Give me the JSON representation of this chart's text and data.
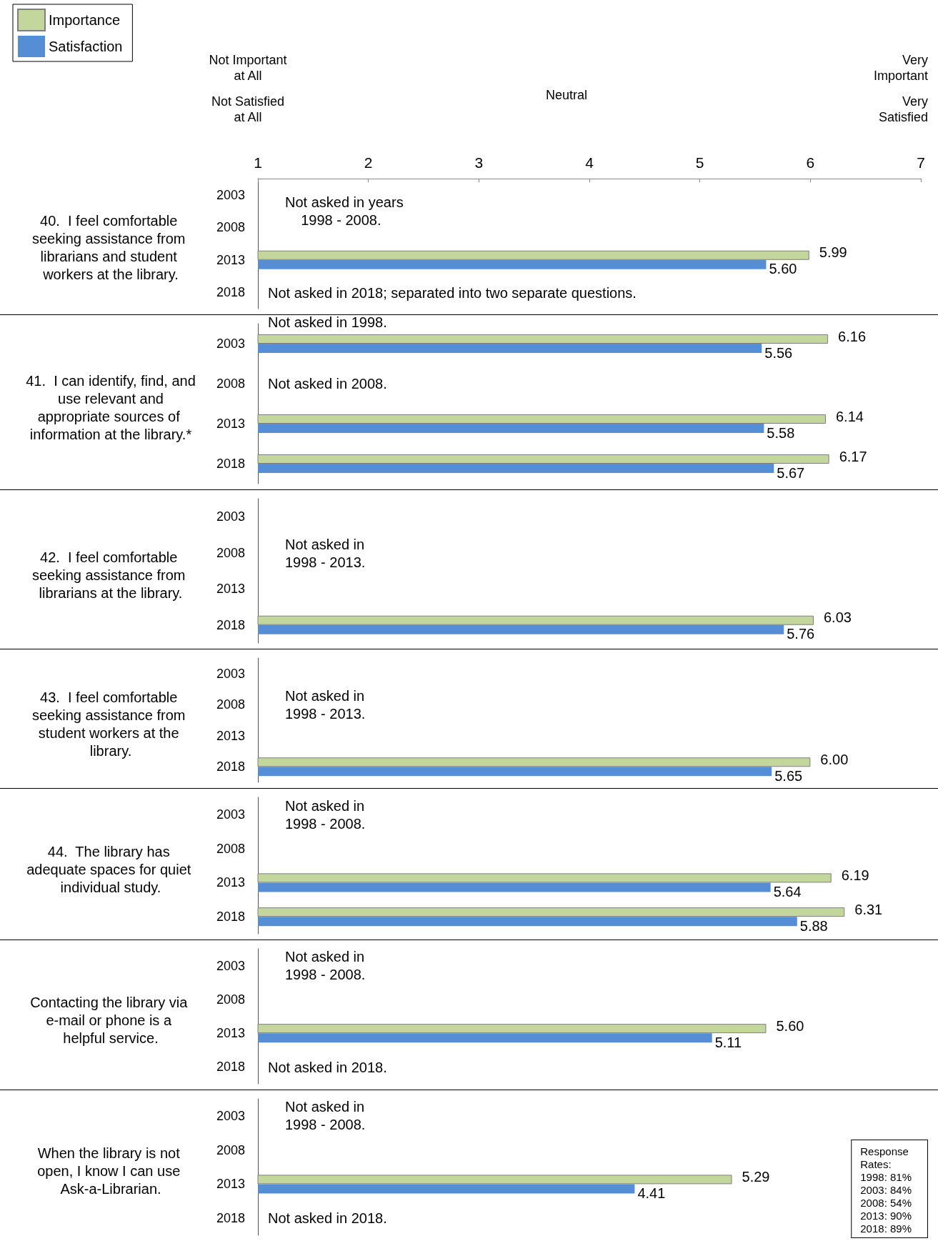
{
  "chart_data": [
    {
      "type": "bar",
      "orientation": "horizontal",
      "title": "40.  I feel comfortable seeking assistance from librarians and student workers at the library.",
      "categories": [
        "2003",
        "2008",
        "2013",
        "2018"
      ],
      "xlim": [
        1,
        7
      ],
      "xticks": [
        1,
        2,
        3,
        4,
        5,
        6,
        7
      ],
      "legend": "top left",
      "grid": false,
      "series": [
        {
          "name": "Importance",
          "color": "#c3d69b",
          "values": [
            null,
            null,
            5.99,
            null
          ],
          "value_labels": [
            null,
            null,
            "5.99",
            null
          ]
        },
        {
          "name": "Satisfaction",
          "color": "#558ed5",
          "values": [
            null,
            null,
            5.6,
            null
          ],
          "value_labels": [
            null,
            null,
            "5.60",
            null
          ]
        }
      ],
      "annotations": [
        "Not Important\nat All",
        "Not Satisfied\nat All",
        "Neutral",
        "Very\nImportant",
        "Very\nSatisfied",
        "Not asked in years\n    1998 - 2008.",
        "Not asked in 2018; separated into two separate questions."
      ]
    },
    {
      "type": "bar",
      "orientation": "horizontal",
      "title": "41.  I can identify, find, and use relevant and appropriate sources of information at the library.*",
      "categories": [
        "2003",
        "2008",
        "2013",
        "2018"
      ],
      "xlim": [
        1,
        7
      ],
      "tick_labels": "y",
      "series": [
        {
          "color": "#c3d69b",
          "values": [
            6.16,
            null,
            6.14,
            6.17
          ],
          "value_labels": [
            "6.16",
            null,
            "6.14",
            "6.17"
          ]
        },
        {
          "color": "#558ed5",
          "values": [
            5.56,
            null,
            5.58,
            5.67
          ],
          "value_labels": [
            "5.56",
            null,
            "5.58",
            "5.67"
          ]
        }
      ],
      "annotations": [
        "Not asked in 1998.",
        "Not asked in 2008."
      ]
    },
    {
      "type": "bar",
      "orientation": "horizontal",
      "title": "42.  I feel comfortable seeking assistance from librarians at the library.",
      "categories": [
        "2003",
        "2008",
        "2013",
        "2018"
      ],
      "xlim": [
        1,
        7
      ],
      "tick_labels": "y",
      "series": [
        {
          "color": "#c3d69b",
          "values": [
            null,
            null,
            null,
            6.03
          ],
          "value_labels": [
            null,
            null,
            null,
            "6.03"
          ]
        },
        {
          "color": "#558ed5",
          "values": [
            null,
            null,
            null,
            5.76
          ],
          "value_labels": [
            null,
            null,
            null,
            "5.76"
          ]
        }
      ],
      "annotations": [
        "Not asked in\n1998 - 2013."
      ]
    },
    {
      "type": "bar",
      "orientation": "horizontal",
      "title": "43.  I feel comfortable seeking assistance from student workers at the library.",
      "categories": [
        "2003",
        "2008",
        "2013",
        "2018"
      ],
      "xlim": [
        1,
        7
      ],
      "tick_labels": "y",
      "series": [
        {
          "color": "#c3d69b",
          "values": [
            null,
            null,
            null,
            6.0
          ],
          "value_labels": [
            null,
            null,
            null,
            "6.00"
          ]
        },
        {
          "color": "#558ed5",
          "values": [
            null,
            null,
            null,
            5.65
          ],
          "value_labels": [
            null,
            null,
            null,
            "5.65"
          ]
        }
      ],
      "annotations": [
        "Not asked in\n1998 - 2013."
      ]
    },
    {
      "type": "bar",
      "orientation": "horizontal",
      "title": "44.  The library has adequate spaces for quiet individual study.",
      "categories": [
        "2003",
        "2008",
        "2013",
        "2018"
      ],
      "xlim": [
        1,
        7
      ],
      "tick_labels": "y",
      "series": [
        {
          "color": "#c3d69b",
          "values": [
            null,
            null,
            6.19,
            6.31
          ],
          "value_labels": [
            null,
            null,
            "6.19",
            "6.31"
          ]
        },
        {
          "color": "#558ed5",
          "values": [
            null,
            null,
            5.64,
            5.88
          ],
          "value_labels": [
            null,
            null,
            "5.64",
            "5.88"
          ]
        }
      ],
      "annotations": [
        "Not asked in\n1998 - 2008."
      ]
    },
    {
      "type": "bar",
      "orientation": "horizontal",
      "title": "Contacting the library via e-mail or phone is a helpful service.",
      "categories": [
        "2003",
        "2008",
        "2013",
        "2018"
      ],
      "xlim": [
        1,
        7
      ],
      "tick_labels": "y",
      "series": [
        {
          "color": "#c3d69b",
          "values": [
            null,
            null,
            5.6,
            null
          ],
          "value_labels": [
            null,
            null,
            "5.60",
            null
          ]
        },
        {
          "color": "#558ed5",
          "values": [
            null,
            null,
            5.11,
            null
          ],
          "value_labels": [
            null,
            null,
            "5.11",
            null
          ]
        }
      ],
      "annotations": [
        "Not asked in\n1998 - 2008.",
        "Not asked in 2018."
      ]
    },
    {
      "type": "bar",
      "orientation": "horizontal",
      "title": "When the library is not open, I know I can use Ask-a-Librarian.",
      "categories": [
        "2003",
        "2008",
        "2013",
        "2018"
      ],
      "xlim": [
        1,
        7
      ],
      "tick_labels": "y",
      "series": [
        {
          "color": "#c3d69b",
          "values": [
            null,
            null,
            5.29,
            null
          ],
          "value_labels": [
            null,
            null,
            "5.29",
            null
          ]
        },
        {
          "color": "#558ed5",
          "values": [
            null,
            null,
            4.41,
            null
          ],
          "value_labels": [
            null,
            null,
            "4.41",
            null
          ]
        }
      ],
      "annotations": [
        "Not asked in\n1998 - 2008.",
        "Not asked in 2018.",
        "Response\nRates:\n1998: 81%\n2003: 84%\n2008: 54%\n2013: 90%\n2018: 89%"
      ]
    }
  ]
}
